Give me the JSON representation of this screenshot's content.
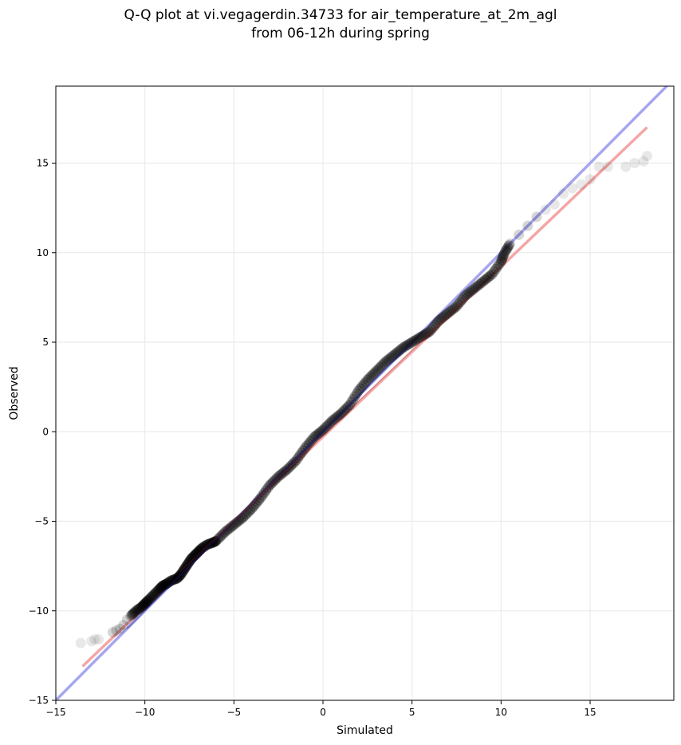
{
  "title_line1": "Q-Q plot at vi.vegagerdin.34733 for air_temperature_at_2m_agl",
  "title_line2": "from 06-12h during spring",
  "chart_data": {
    "type": "scatter",
    "title": "Q-Q plot at vi.vegagerdin.34733 for air_temperature_at_2m_agl\nfrom 06-12h during spring",
    "xlabel": "Simulated",
    "ylabel": "Observed",
    "xlim": [
      -15,
      19.7
    ],
    "ylim": [
      -15,
      19.3
    ],
    "xticks": [
      -15,
      -10,
      -5,
      0,
      5,
      10,
      15
    ],
    "yticks": [
      -15,
      -10,
      -5,
      0,
      5,
      10,
      15
    ],
    "xtick_labels": [
      "−15",
      "−10",
      "−5",
      "0",
      "5",
      "10",
      "15"
    ],
    "ytick_labels": [
      "−15",
      "−10",
      "−5",
      "0",
      "5",
      "10",
      "15"
    ],
    "grid": true,
    "reference_lines": [
      {
        "role": "identity",
        "color": "#a6a6f0",
        "x": [
          -15,
          19.7
        ],
        "y": [
          -15,
          19.7
        ]
      },
      {
        "role": "fit",
        "color": "#f4a6a6",
        "x": [
          -13.5,
          18.2
        ],
        "y": [
          -13.1,
          17.0
        ]
      }
    ],
    "quantile_points": {
      "sim": [
        -13.6,
        -13.0,
        -12.8,
        -12.6,
        -11.8,
        -11.6,
        -11.4,
        -11.2,
        -11.0,
        -10.8,
        -10.5,
        -10.2,
        -10.0,
        -9.8,
        -9.5,
        -9.2,
        -9.0,
        -8.8,
        -8.5,
        -8.2,
        -8.0,
        -7.8,
        -7.6,
        -7.4,
        -7.2,
        -7.0,
        -6.8,
        -6.5,
        -6.2,
        -6.0,
        -5.5,
        -5.0,
        -4.5,
        -4.0,
        -3.5,
        -3.0,
        -2.5,
        -2.0,
        -1.5,
        -1.0,
        -0.5,
        0.0,
        0.5,
        1.0,
        1.5,
        2.0,
        2.5,
        3.0,
        3.5,
        4.0,
        4.5,
        5.0,
        5.5,
        6.0,
        6.5,
        7.0,
        7.5,
        8.0,
        8.5,
        9.0,
        9.5,
        10.0,
        10.2,
        10.5,
        11.0,
        11.5,
        12.0,
        12.5,
        13.0,
        13.5,
        14.0,
        14.5,
        15.0,
        15.5,
        16.0,
        17.0,
        17.5,
        18.0,
        18.2
      ],
      "obs": [
        -11.8,
        -11.7,
        -11.6,
        -11.6,
        -11.2,
        -11.1,
        -11.0,
        -10.8,
        -10.5,
        -10.3,
        -10.0,
        -9.8,
        -9.6,
        -9.4,
        -9.1,
        -8.8,
        -8.6,
        -8.5,
        -8.3,
        -8.2,
        -8.0,
        -7.7,
        -7.4,
        -7.1,
        -6.9,
        -6.7,
        -6.5,
        -6.3,
        -6.2,
        -6.1,
        -5.6,
        -5.2,
        -4.8,
        -4.3,
        -3.7,
        -3.0,
        -2.5,
        -2.1,
        -1.6,
        -0.9,
        -0.3,
        0.1,
        0.6,
        1.0,
        1.5,
        2.3,
        2.9,
        3.4,
        3.9,
        4.3,
        4.7,
        5.0,
        5.3,
        5.6,
        6.2,
        6.6,
        7.0,
        7.6,
        8.0,
        8.4,
        8.8,
        9.5,
        10.0,
        10.5,
        11.0,
        11.5,
        12.0,
        12.4,
        12.7,
        13.3,
        13.6,
        13.8,
        14.1,
        14.8,
        14.8,
        14.8,
        15.0,
        15.1,
        15.4
      ]
    }
  },
  "colors": {
    "identity_line": "#a6a6f0",
    "fit_line": "#f4a6a6",
    "points": "#000000",
    "grid": "#ebebeb"
  }
}
